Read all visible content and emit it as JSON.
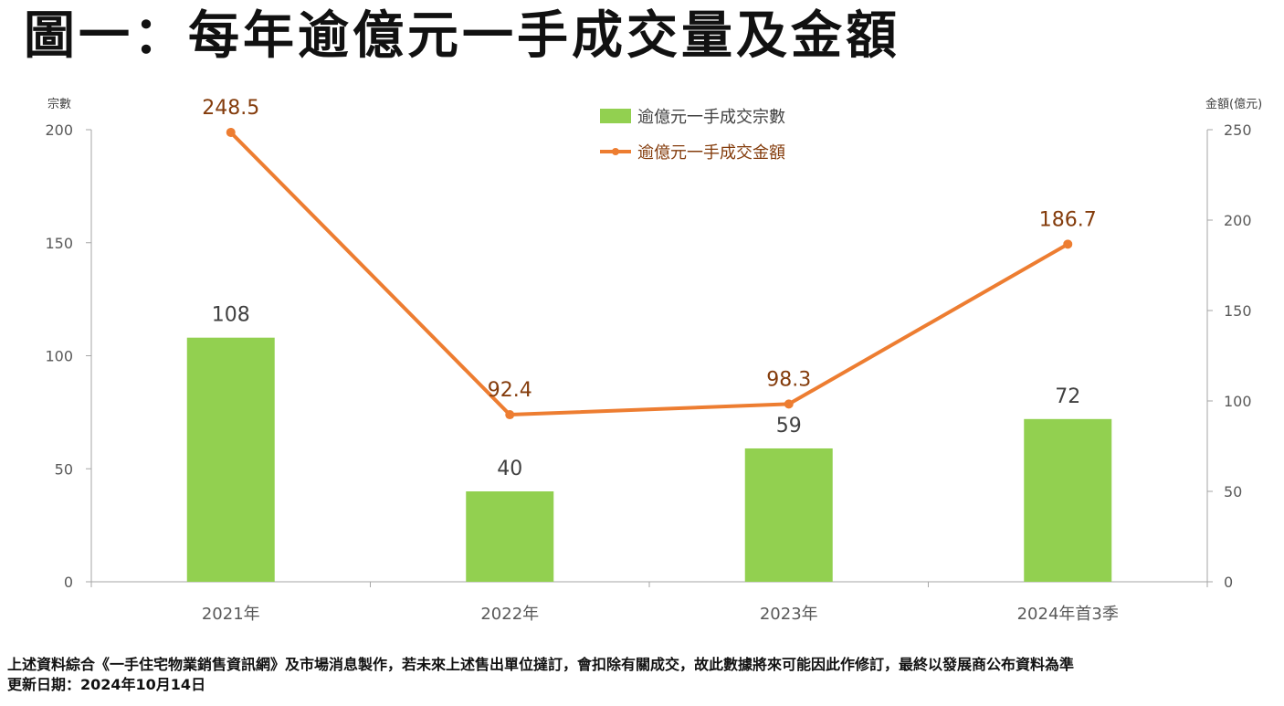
{
  "title": "圖一：每年逾億元一手成交量及金額",
  "footnotes": [
    "上述資料綜合《一手住宅物業銷售資訊網》及市場消息製作，若未來上述售出單位撻訂，會扣除有關成交，故此數據將來可能因此作修訂，最終以發展商公布資料為準",
    "更新日期：2024年10月14日"
  ],
  "chart_data": {
    "type": "bar",
    "categories": [
      "2021年",
      "2022年",
      "2023年",
      "2024年首3季"
    ],
    "series": [
      {
        "name": "逾億元一手成交宗數",
        "type": "bar",
        "axis": "left",
        "color": "#92d050",
        "values": [
          108,
          40,
          59,
          72
        ],
        "labels": [
          "108",
          "40",
          "59",
          "72"
        ]
      },
      {
        "name": "逾億元一手成交金額",
        "type": "line",
        "axis": "right",
        "color": "#ed7d31",
        "values": [
          248.5,
          92.4,
          98.3,
          186.7
        ],
        "labels": [
          "248.5",
          "92.4",
          "98.3",
          "186.7"
        ]
      }
    ],
    "ylabel": "宗數",
    "y2label": "金額(億元)",
    "ylim": [
      0,
      200
    ],
    "y2lim": [
      0,
      250
    ],
    "yticks": [
      0,
      50,
      100,
      150,
      200
    ],
    "y2ticks": [
      0,
      50,
      100,
      150,
      200,
      250
    ],
    "legend": "top-center",
    "grid": false,
    "line_label_color": "#843c0c",
    "bar_label_color": "#404040"
  }
}
